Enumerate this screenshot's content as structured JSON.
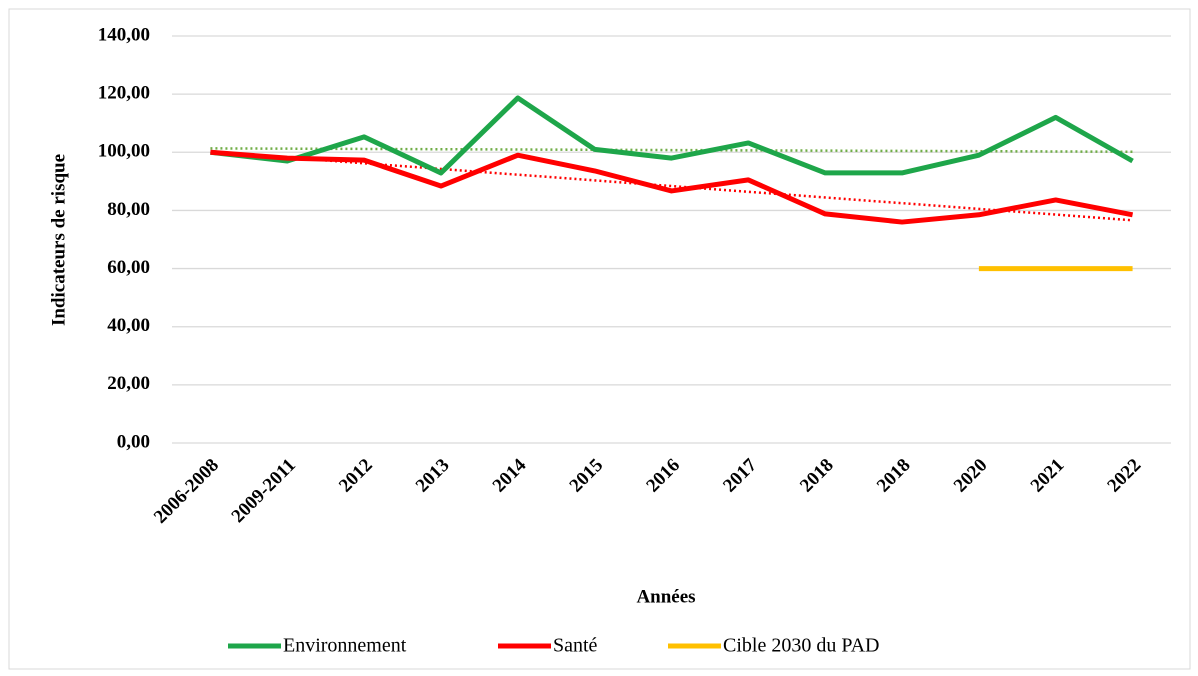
{
  "chart_data": {
    "type": "line",
    "x_label": "Années",
    "y_label": "Indicateurs de risque",
    "categories": [
      "2006-2008",
      "2009-2011",
      "2012",
      "2013",
      "2014",
      "2015",
      "2016",
      "2017",
      "2018",
      "2018",
      "2020",
      "2021",
      "2022"
    ],
    "series": [
      {
        "name": "Environnement",
        "color": "#1ea64a",
        "trendline": true,
        "trend_color": "#70ad47",
        "values": [
          100,
          97,
          105.3,
          92.9,
          118.7,
          101,
          98,
          103.2,
          92.9,
          92.9,
          99,
          112,
          97
        ]
      },
      {
        "name": "Santé",
        "color": "#ff0000",
        "trendline": true,
        "trend_color": "#ff0000",
        "values": [
          100,
          98,
          97.3,
          88.4,
          99,
          93.6,
          86.7,
          90.5,
          78.8,
          76,
          78.5,
          83.6,
          78.5
        ]
      },
      {
        "name": "Cible 2030 du PAD",
        "color": "#ffc000",
        "trendline": false,
        "values": [
          null,
          null,
          null,
          null,
          null,
          null,
          null,
          null,
          null,
          null,
          60,
          60,
          60
        ]
      }
    ],
    "ylim": [
      0,
      140
    ],
    "yticks": [
      {
        "value": 0,
        "label": "0,00"
      },
      {
        "value": 20,
        "label": "20,00"
      },
      {
        "value": 40,
        "label": "40,00"
      },
      {
        "value": 60,
        "label": "60,00"
      },
      {
        "value": 80,
        "label": "80,00"
      },
      {
        "value": 100,
        "label": "100,00"
      },
      {
        "value": 120,
        "label": "120,00"
      },
      {
        "value": 140,
        "label": "140,00"
      }
    ],
    "grid": true,
    "legend": "bottom"
  }
}
